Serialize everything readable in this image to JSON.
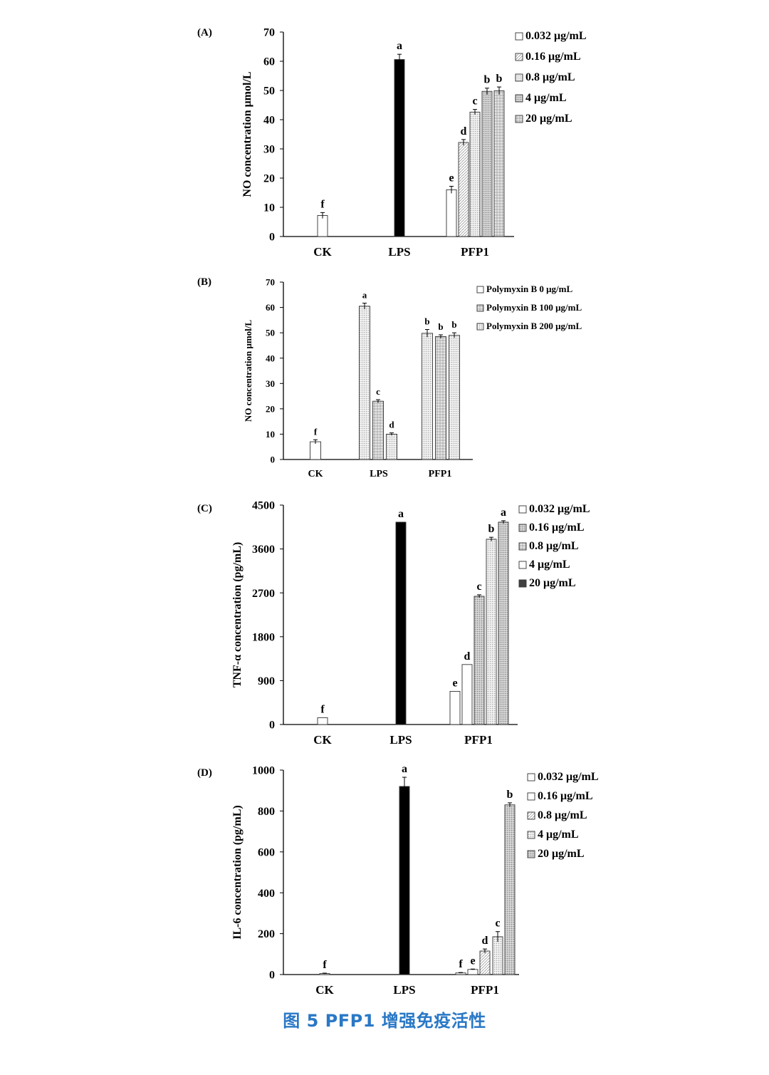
{
  "caption": "图 5 PFP1 增强免疫活性",
  "chart_data": [
    {
      "type": "bar",
      "panel_label": "(A)",
      "ylabel": "NO concentration μmol/L",
      "ylim": [
        0,
        70
      ],
      "yticks": [
        "0",
        "10",
        "20",
        "30",
        "40",
        "50",
        "60",
        "70"
      ],
      "categories": [
        "CK",
        "LPS",
        "PFP1"
      ],
      "bars": [
        {
          "group": "CK",
          "value": 7.2,
          "err": 1.0,
          "sig": "f",
          "style": "white"
        },
        {
          "group": "LPS",
          "value": 60.6,
          "err": 1.8,
          "sig": "a",
          "style": "black"
        },
        {
          "group": "PFP1",
          "series": "0.032 μg/mL",
          "value": 16.0,
          "err": 1.2,
          "sig": "e",
          "style": "white"
        },
        {
          "group": "PFP1",
          "series": "0.16 μg/mL",
          "value": 32.2,
          "err": 1.0,
          "sig": "d",
          "style": "hatch"
        },
        {
          "group": "PFP1",
          "series": "0.8 μg/mL",
          "value": 42.6,
          "err": 0.9,
          "sig": "c",
          "style": "dots"
        },
        {
          "group": "PFP1",
          "series": "4 μg/mL",
          "value": 49.7,
          "err": 1.1,
          "sig": "b",
          "style": "dense"
        },
        {
          "group": "PFP1",
          "series": "20 μg/mL",
          "value": 49.9,
          "err": 1.3,
          "sig": "b",
          "style": "grid"
        }
      ],
      "legend": [
        {
          "label": "0.032 μg/mL",
          "style": "white"
        },
        {
          "label": "0.16 μg/mL",
          "style": "hatch"
        },
        {
          "label": "0.8 μg/mL",
          "style": "dots"
        },
        {
          "label": "4 μg/mL",
          "style": "dense"
        },
        {
          "label": "20 μg/mL",
          "style": "grid"
        }
      ]
    },
    {
      "type": "bar",
      "panel_label": "(B)",
      "ylabel": "NO concentration μmol/L",
      "ylim": [
        0,
        70
      ],
      "yticks": [
        "0",
        "10",
        "20",
        "30",
        "40",
        "50",
        "60",
        "70"
      ],
      "categories": [
        "CK",
        "LPS",
        "PFP1"
      ],
      "bars": [
        {
          "group": "CK",
          "value": 7.0,
          "err": 0.8,
          "sig": "f",
          "style": "white"
        },
        {
          "group": "LPS",
          "series": "Polymyxin B 0 μg/mL",
          "value": 60.5,
          "err": 1.2,
          "sig": "a",
          "style": "dots"
        },
        {
          "group": "LPS",
          "series": "Polymyxin B 100 μg/mL",
          "value": 23.0,
          "err": 0.6,
          "sig": "c",
          "style": "grid"
        },
        {
          "group": "LPS",
          "series": "Polymyxin B 200 μg/mL",
          "value": 10.0,
          "err": 0.5,
          "sig": "d",
          "style": "dots"
        },
        {
          "group": "PFP1",
          "series": "Polymyxin B 0 μg/mL",
          "value": 49.8,
          "err": 1.5,
          "sig": "b",
          "style": "dots"
        },
        {
          "group": "PFP1",
          "series": "Polymyxin B 100 μg/mL",
          "value": 48.5,
          "err": 0.7,
          "sig": "b",
          "style": "grid"
        },
        {
          "group": "PFP1",
          "series": "Polymyxin B 200 μg/mL",
          "value": 49.0,
          "err": 1.0,
          "sig": "b",
          "style": "dots"
        }
      ],
      "legend": [
        {
          "label": "Polymyxin B 0 μg/mL",
          "style": "white"
        },
        {
          "label": "Polymyxin B 100 μg/mL",
          "style": "grid"
        },
        {
          "label": "Polymyxin B 200 μg/mL",
          "style": "dots"
        }
      ]
    },
    {
      "type": "bar",
      "panel_label": "(C)",
      "ylabel": "TNF-α concentration (pg/mL)",
      "ylim": [
        0,
        4500
      ],
      "yticks": [
        "0",
        "900",
        "1800",
        "2700",
        "3600",
        "4500"
      ],
      "categories": [
        "CK",
        "LPS",
        "PFP1"
      ],
      "bars": [
        {
          "group": "CK",
          "value": 140,
          "err": 0,
          "sig": "f",
          "style": "white"
        },
        {
          "group": "LPS",
          "value": 4150,
          "err": 0,
          "sig": "a",
          "style": "black"
        },
        {
          "group": "PFP1",
          "series": "0.032 μg/mL",
          "value": 680,
          "err": 0,
          "sig": "e",
          "style": "white"
        },
        {
          "group": "PFP1",
          "series": "0.16 μg/mL",
          "value": 1230,
          "err": 0,
          "sig": "d",
          "style": "white"
        },
        {
          "group": "PFP1",
          "series": "0.8 μg/mL",
          "value": 2630,
          "err": 30,
          "sig": "c",
          "style": "dense"
        },
        {
          "group": "PFP1",
          "series": "4 μg/mL",
          "value": 3800,
          "err": 40,
          "sig": "b",
          "style": "dots"
        },
        {
          "group": "PFP1",
          "series": "20 μg/mL",
          "value": 4150,
          "err": 30,
          "sig": "a",
          "style": "dense"
        }
      ],
      "legend": [
        {
          "label": "0.032 μg/mL",
          "style": "white"
        },
        {
          "label": "0.16 μg/mL",
          "style": "dense"
        },
        {
          "label": "0.8 μg/mL",
          "style": "grid"
        },
        {
          "label": "4 μg/mL",
          "style": "white"
        },
        {
          "label": "20 μg/mL",
          "style": "dark"
        }
      ]
    },
    {
      "type": "bar",
      "panel_label": "(D)",
      "ylabel": "IL-6 concentration (pg/mL)",
      "ylim": [
        0,
        1000
      ],
      "yticks": [
        "0",
        "200",
        "400",
        "600",
        "800",
        "1000"
      ],
      "categories": [
        "CK",
        "LPS",
        "PFP1"
      ],
      "bars": [
        {
          "group": "CK",
          "value": 5,
          "err": 2,
          "sig": "f",
          "style": "white"
        },
        {
          "group": "LPS",
          "value": 920,
          "err": 45,
          "sig": "a",
          "style": "black"
        },
        {
          "group": "PFP1",
          "series": "0.032 μg/mL",
          "value": 8,
          "err": 2,
          "sig": "f",
          "style": "white"
        },
        {
          "group": "PFP1",
          "series": "0.16 μg/mL",
          "value": 25,
          "err": 2,
          "sig": "e",
          "style": "white"
        },
        {
          "group": "PFP1",
          "series": "0.8 μg/mL",
          "value": 115,
          "err": 10,
          "sig": "d",
          "style": "hatch"
        },
        {
          "group": "PFP1",
          "series": "4 μg/mL",
          "value": 185,
          "err": 25,
          "sig": "c",
          "style": "dots"
        },
        {
          "group": "PFP1",
          "series": "20 μg/mL",
          "value": 830,
          "err": 10,
          "sig": "b",
          "style": "dense"
        }
      ],
      "legend": [
        {
          "label": "0.032 μg/mL",
          "style": "white"
        },
        {
          "label": "0.16 μg/mL",
          "style": "white"
        },
        {
          "label": "0.8 μg/mL",
          "style": "hatch"
        },
        {
          "label": "4 μg/mL",
          "style": "dots"
        },
        {
          "label": "20 μg/mL",
          "style": "dense"
        }
      ]
    }
  ]
}
